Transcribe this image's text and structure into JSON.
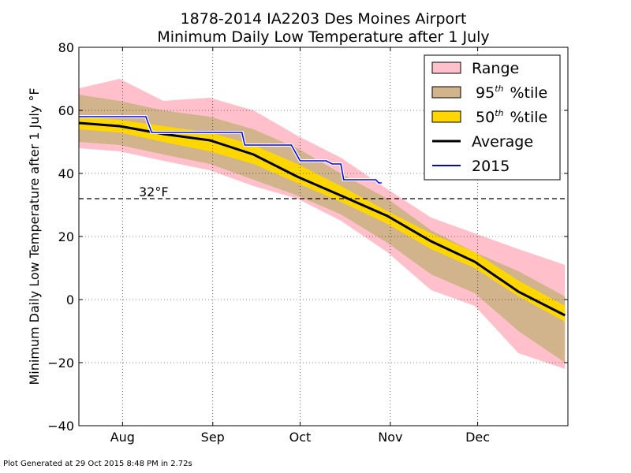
{
  "footer": "Plot Generated at 29 Oct 2015 8:48 PM in 2.72s",
  "chart_data": {
    "type": "area",
    "title_line1": "1878-2014 IA2203 Des Moines Airport",
    "title_line2": "Minimum Daily Low Temperature after 1 July",
    "ylabel": "Minimum Daily Low Temperature after 1 July °F",
    "xlabel": "",
    "x_unit": "date",
    "xlim": [
      "2015-07-17",
      "2016-01-01"
    ],
    "ylim": [
      -40,
      80
    ],
    "y_ticks": [
      -40,
      -20,
      0,
      20,
      40,
      60,
      80
    ],
    "x_ticks": [
      {
        "date": "2015-08-01",
        "label": "Aug"
      },
      {
        "date": "2015-09-01",
        "label": "Sep"
      },
      {
        "date": "2015-10-01",
        "label": "Oct"
      },
      {
        "date": "2015-11-01",
        "label": "Nov"
      },
      {
        "date": "2015-12-01",
        "label": "Dec"
      }
    ],
    "grid": true,
    "legend_placement": "top-right",
    "reference_line": {
      "y": 32,
      "label": "32°F",
      "style": "dashed"
    },
    "dates": [
      "2015-07-17",
      "2015-07-31",
      "2015-08-15",
      "2015-08-31",
      "2015-09-15",
      "2015-09-30",
      "2015-10-15",
      "2015-10-31",
      "2015-11-15",
      "2015-11-30",
      "2015-12-15",
      "2015-12-31"
    ],
    "series": [
      {
        "name": "Range",
        "kind": "band",
        "color": "#ffc0cb",
        "low": [
          48,
          47,
          44,
          41,
          36,
          32,
          25,
          15,
          3,
          -2,
          -17,
          -22
        ],
        "high": [
          67,
          70,
          63,
          64,
          60,
          52,
          45,
          35,
          26,
          21,
          16,
          11
        ]
      },
      {
        "name": "95th %tile",
        "legend_label": "95",
        "legend_sup": "th",
        "legend_suffix": "%tile",
        "kind": "band",
        "color": "#d2b48c",
        "low": [
          50,
          49,
          46,
          43,
          38,
          33,
          27,
          18,
          8,
          2,
          -10,
          -20
        ],
        "high": [
          65,
          63,
          60,
          58,
          54,
          48,
          40,
          32,
          22,
          15,
          9,
          1
        ]
      },
      {
        "name": "50th %tile",
        "legend_label": "50",
        "legend_sup": "th",
        "legend_suffix": "%tile",
        "kind": "band",
        "color": "#ffd700",
        "low": [
          54,
          53,
          50,
          47,
          43,
          37,
          31,
          24,
          16,
          10,
          1,
          -7
        ],
        "high": [
          58,
          57,
          55,
          53,
          49,
          43,
          36,
          28,
          21,
          15,
          6,
          -2
        ]
      },
      {
        "name": "Average",
        "kind": "line",
        "color": "#000000",
        "values": [
          56,
          55,
          52.5,
          50.5,
          46,
          39,
          33,
          26.5,
          18.5,
          12,
          2.5,
          -5
        ]
      },
      {
        "name": "2015",
        "kind": "step",
        "color": "#0000ff",
        "points": [
          [
            "2015-07-17",
            58
          ],
          [
            "2015-08-09",
            58
          ],
          [
            "2015-08-11",
            53
          ],
          [
            "2015-09-11",
            53
          ],
          [
            "2015-09-12",
            49
          ],
          [
            "2015-09-28",
            49
          ],
          [
            "2015-10-01",
            44
          ],
          [
            "2015-10-10",
            44
          ],
          [
            "2015-10-12",
            43
          ],
          [
            "2015-10-15",
            43
          ],
          [
            "2015-10-16",
            38
          ],
          [
            "2015-10-27",
            38
          ],
          [
            "2015-10-28",
            37
          ],
          [
            "2015-10-29",
            37
          ]
        ]
      }
    ]
  }
}
